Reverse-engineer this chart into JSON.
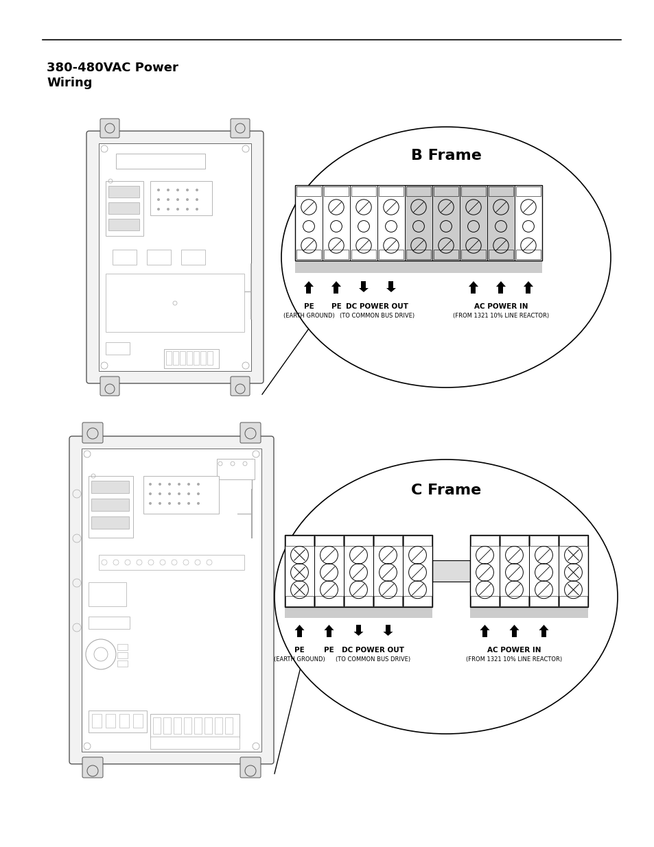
{
  "title": "380-480VAC Power\nWiring",
  "title_fontsize": 13,
  "title_fontweight": "bold",
  "bg_color": "#ffffff",
  "b_frame_label": "B Frame",
  "c_frame_label": "C Frame",
  "line_color": "#000000",
  "gray_color": "#cccccc",
  "light_gray": "#e8e8e8",
  "drawing_gray": "#aaaaaa",
  "pe1_label": "PE",
  "pe2_label": "PE",
  "dc_power_out_label": "DC POWER OUT",
  "ac_power_in_label": "AC POWER IN",
  "earth_ground_label": "(EARTH GROUND)",
  "to_common_bus_label": "(TO COMMON BUS DRIVE)",
  "from_1321_label": "(FROM 1321 10% LINE REACTOR)"
}
